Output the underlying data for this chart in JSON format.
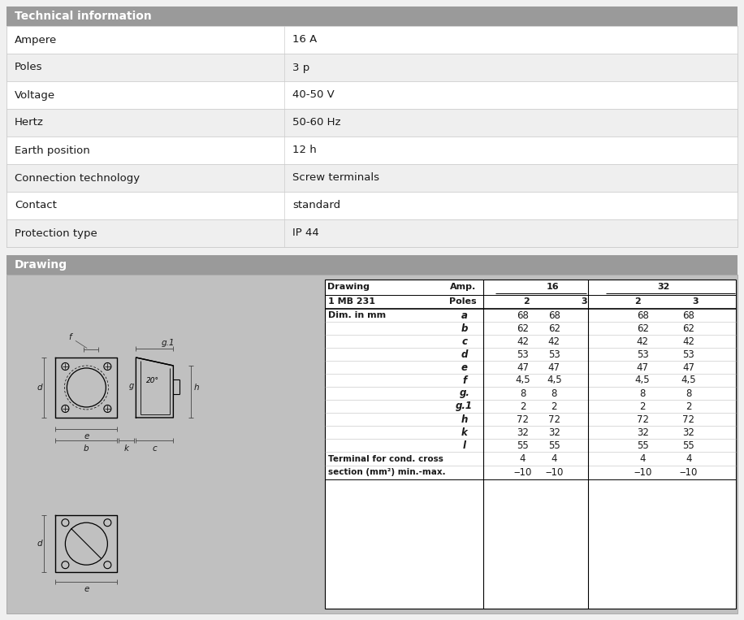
{
  "tech_header": "Technical information",
  "tech_rows": [
    [
      "Ampere",
      "16 A"
    ],
    [
      "Poles",
      "3 p"
    ],
    [
      "Voltage",
      "40-50 V"
    ],
    [
      "Hertz",
      "50-60 Hz"
    ],
    [
      "Earth position",
      "12 h"
    ],
    [
      "Connection technology",
      "Screw terminals"
    ],
    [
      "Contact",
      "standard"
    ],
    [
      "Protection type",
      "IP 44"
    ]
  ],
  "drawing_header": "Drawing",
  "drawing_dim_rows": [
    [
      "a",
      "68",
      "68",
      "68",
      "68"
    ],
    [
      "b",
      "62",
      "62",
      "62",
      "62"
    ],
    [
      "c",
      "42",
      "42",
      "42",
      "42"
    ],
    [
      "d",
      "53",
      "53",
      "53",
      "53"
    ],
    [
      "e",
      "47",
      "47",
      "47",
      "47"
    ],
    [
      "f",
      "4,5",
      "4,5",
      "4,5",
      "4,5"
    ],
    [
      "g.",
      "8",
      "8",
      "8",
      "8"
    ],
    [
      "g.1",
      "2",
      "2",
      "2",
      "2"
    ],
    [
      "h",
      "72",
      "72",
      "72",
      "72"
    ],
    [
      "k",
      "32",
      "32",
      "32",
      "32"
    ],
    [
      "l",
      "55",
      "55",
      "55",
      "55"
    ]
  ],
  "terminal_row1_label": "Terminal for cond. cross",
  "terminal_row2_label": "section (mm²) min.-max.",
  "terminal_vals": [
    "4",
    "4",
    "4",
    "4"
  ],
  "terminal_max_vals": [
    "‒10",
    "‒10",
    "‒10",
    "‒10"
  ],
  "header_bg": "#9a9a9a",
  "header_text": "#ffffff",
  "row_bg_light": "#ffffff",
  "row_bg_dark": "#efefef",
  "border_color": "#cccccc",
  "drawing_bg": "#c0c0c0",
  "fig_bg": "#f0f0f0"
}
